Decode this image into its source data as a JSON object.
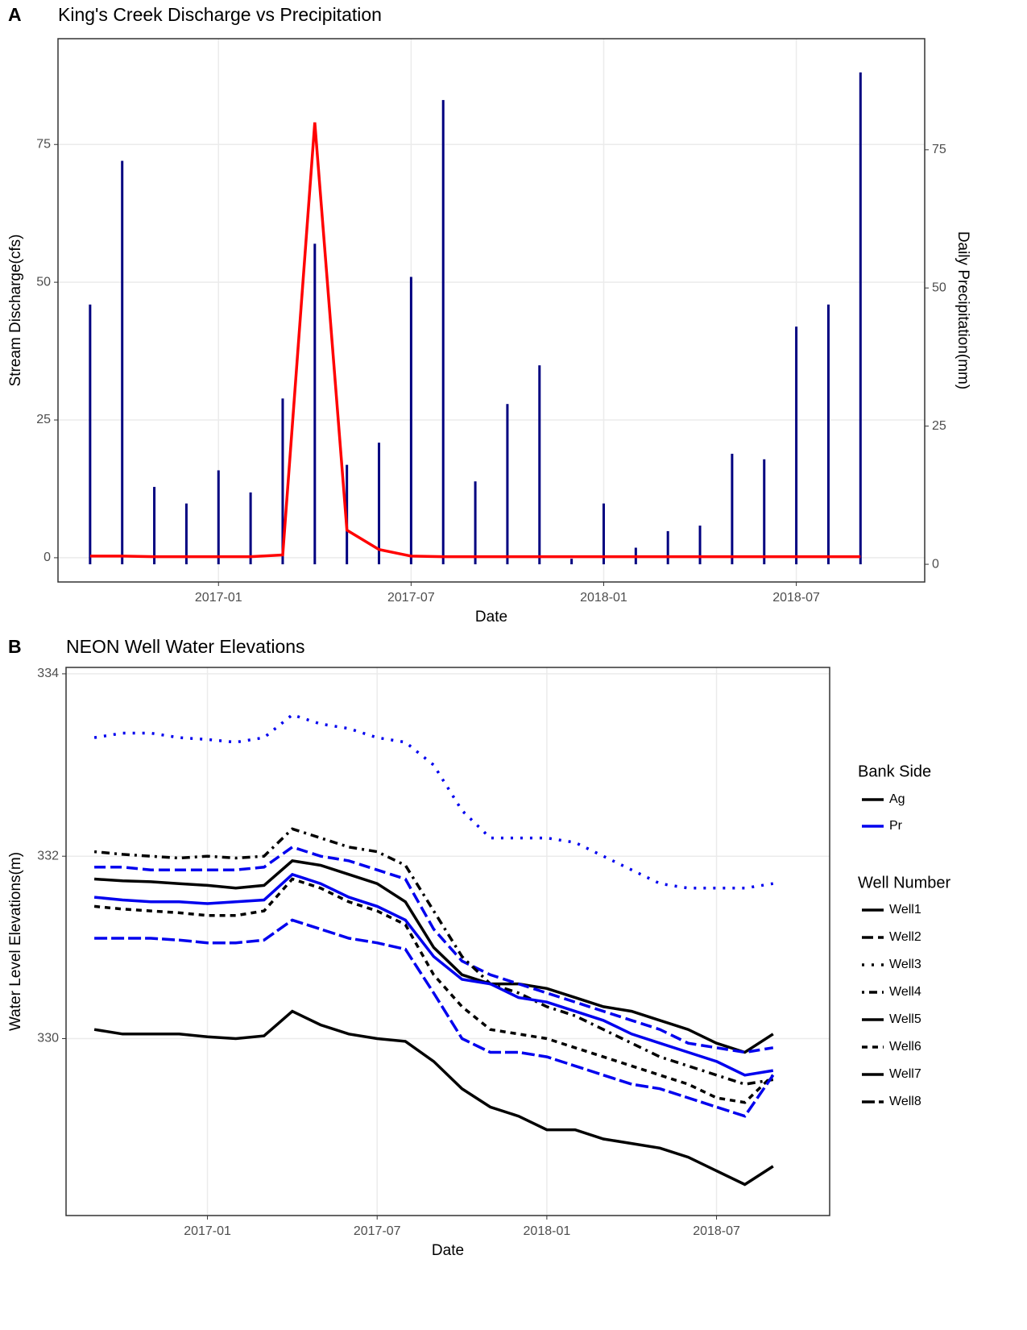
{
  "chart_data": [
    {
      "type": "combo",
      "panel": "A",
      "title": "King's Creek Discharge vs Precipitation",
      "x_label": "Date",
      "y_label": "Stream Discharge(cfs)",
      "y2_label": "Daily Precipitation(mm)",
      "x": [
        "2016-09",
        "2016-10",
        "2016-11",
        "2016-12",
        "2017-01",
        "2017-02",
        "2017-03",
        "2017-04",
        "2017-05",
        "2017-06",
        "2017-07",
        "2017-08",
        "2017-09",
        "2017-10",
        "2017-11",
        "2017-12",
        "2018-01",
        "2018-02",
        "2018-03",
        "2018-04",
        "2018-05",
        "2018-06",
        "2018-07",
        "2018-08",
        "2018-09"
      ],
      "xlim": [
        "2016-08",
        "2018-11"
      ],
      "xticks": [
        "2017-01",
        "2017-07",
        "2018-01",
        "2018-07"
      ],
      "ylim": [
        -4.4,
        94.2
      ],
      "yticks": [
        0,
        25,
        50,
        75
      ],
      "y2lim": [
        -3.2,
        95.1
      ],
      "y2ticks": [
        0,
        25,
        50,
        75
      ],
      "grid": true,
      "series": [
        {
          "type": "bar",
          "axis": "y2",
          "color": "#000080",
          "values": [
            47,
            73,
            14,
            11,
            17,
            13,
            30,
            58,
            18,
            22,
            52,
            84,
            15,
            29,
            36,
            1,
            11,
            3,
            6,
            7,
            20,
            19,
            43,
            47,
            89
          ]
        },
        {
          "type": "line",
          "axis": "y",
          "color": "#ff0000",
          "values": [
            0.3,
            0.3,
            0.2,
            0.2,
            0.2,
            0.2,
            0.5,
            79,
            5,
            1.5,
            0.3,
            0.2,
            0.2,
            0.2,
            0.2,
            0.2,
            0.2,
            0.2,
            0.2,
            0.2,
            0.2,
            0.2,
            0.2,
            0.2,
            0.2
          ]
        }
      ]
    },
    {
      "type": "line",
      "panel": "B",
      "title": "NEON Well Water Elevations",
      "x_label": "Date",
      "y_label": "Water Level Elevations(m)",
      "x": [
        "2016-09",
        "2016-10",
        "2016-11",
        "2016-12",
        "2017-01",
        "2017-02",
        "2017-03",
        "2017-04",
        "2017-05",
        "2017-06",
        "2017-07",
        "2017-08",
        "2017-09",
        "2017-10",
        "2017-11",
        "2017-12",
        "2018-01",
        "2018-02",
        "2018-03",
        "2018-04",
        "2018-05",
        "2018-06",
        "2018-07",
        "2018-08",
        "2018-09"
      ],
      "xlim": [
        "2016-08",
        "2018-11"
      ],
      "xticks": [
        "2017-01",
        "2017-07",
        "2018-01",
        "2018-07"
      ],
      "ylim": [
        328.06,
        334.07
      ],
      "yticks": [
        330,
        332,
        334
      ],
      "grid": true,
      "legend_bank_title": "Bank Side",
      "legend_well_title": "Well Number",
      "bank_sides": [
        {
          "name": "Ag",
          "color": "#000000"
        },
        {
          "name": "Pr",
          "color": "#0000ee"
        }
      ],
      "series": [
        {
          "name": "Well1",
          "bank_side": "Ag",
          "dash": "none",
          "values": [
            331.75,
            331.73,
            331.72,
            331.7,
            331.68,
            331.65,
            331.68,
            331.95,
            331.9,
            331.8,
            331.7,
            331.5,
            331.0,
            330.7,
            330.6,
            330.6,
            330.55,
            330.45,
            330.35,
            330.3,
            330.2,
            330.1,
            329.95,
            329.85,
            330.05
          ]
        },
        {
          "name": "Well2",
          "bank_side": "Pr",
          "dash": "14 6",
          "values": [
            331.88,
            331.88,
            331.85,
            331.85,
            331.85,
            331.85,
            331.88,
            332.1,
            332.0,
            331.95,
            331.85,
            331.75,
            331.2,
            330.85,
            330.7,
            330.6,
            330.5,
            330.4,
            330.3,
            330.2,
            330.1,
            329.95,
            329.9,
            329.85,
            329.9
          ]
        },
        {
          "name": "Well3",
          "bank_side": "Pr",
          "dash": "3 9",
          "values": [
            333.3,
            333.35,
            333.35,
            333.3,
            333.28,
            333.25,
            333.3,
            333.55,
            333.45,
            333.4,
            333.3,
            333.25,
            333.0,
            332.5,
            332.2,
            332.2,
            332.2,
            332.15,
            332.0,
            331.85,
            331.7,
            331.65,
            331.65,
            331.65,
            331.7
          ]
        },
        {
          "name": "Well4",
          "bank_side": "Ag",
          "dash": "3 6 10 6",
          "values": [
            332.05,
            332.02,
            332.0,
            331.98,
            332.0,
            331.98,
            332.0,
            332.3,
            332.2,
            332.1,
            332.05,
            331.9,
            331.4,
            330.9,
            330.6,
            330.5,
            330.35,
            330.25,
            330.1,
            329.95,
            329.8,
            329.7,
            329.6,
            329.5,
            329.55
          ]
        },
        {
          "name": "Well5",
          "bank_side": "Ag",
          "dash": "none",
          "values": [
            330.1,
            330.05,
            330.05,
            330.05,
            330.02,
            330.0,
            330.03,
            330.3,
            330.15,
            330.05,
            330.0,
            329.97,
            329.75,
            329.45,
            329.25,
            329.15,
            329.0,
            329.0,
            328.9,
            328.85,
            328.8,
            328.7,
            328.55,
            328.4,
            328.6
          ]
        },
        {
          "name": "Well6",
          "bank_side": "Ag",
          "dash": "7 6",
          "values": [
            331.45,
            331.42,
            331.4,
            331.38,
            331.35,
            331.35,
            331.4,
            331.75,
            331.65,
            331.5,
            331.4,
            331.25,
            330.7,
            330.35,
            330.1,
            330.05,
            330.0,
            329.9,
            329.8,
            329.7,
            329.6,
            329.5,
            329.35,
            329.3,
            329.6
          ]
        },
        {
          "name": "Well7",
          "bank_side": "Pr",
          "dash": "none",
          "values": [
            331.55,
            331.52,
            331.5,
            331.5,
            331.48,
            331.5,
            331.52,
            331.8,
            331.7,
            331.55,
            331.45,
            331.3,
            330.9,
            330.65,
            330.6,
            330.45,
            330.4,
            330.3,
            330.2,
            330.05,
            329.95,
            329.85,
            329.75,
            329.6,
            329.65
          ]
        },
        {
          "name": "Well8",
          "bank_side": "Pr",
          "dash": "16 5",
          "values": [
            331.1,
            331.1,
            331.1,
            331.08,
            331.05,
            331.05,
            331.08,
            331.3,
            331.2,
            331.1,
            331.05,
            330.98,
            330.5,
            330.0,
            329.85,
            329.85,
            329.8,
            329.7,
            329.6,
            329.5,
            329.45,
            329.35,
            329.25,
            329.15,
            329.6
          ]
        }
      ]
    }
  ]
}
